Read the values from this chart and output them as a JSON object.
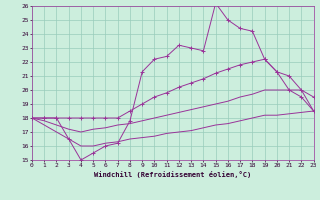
{
  "xlabel": "Windchill (Refroidissement éolien,°C)",
  "bg_color": "#cceedd",
  "grid_color": "#99ccbb",
  "line_color": "#993399",
  "xmin": 0,
  "xmax": 23,
  "ymin": 15,
  "ymax": 26,
  "yticks": [
    15,
    16,
    17,
    18,
    19,
    20,
    21,
    22,
    23,
    24,
    25,
    26
  ],
  "xticks": [
    0,
    1,
    2,
    3,
    4,
    5,
    6,
    7,
    8,
    9,
    10,
    11,
    12,
    13,
    14,
    15,
    16,
    17,
    18,
    19,
    20,
    21,
    22,
    23
  ],
  "line1_x": [
    0,
    1,
    2,
    3,
    4,
    5,
    6,
    7,
    8,
    9,
    10,
    11,
    12,
    13,
    14,
    15,
    16,
    17,
    18,
    19,
    20,
    21,
    22,
    23
  ],
  "line1_y": [
    18.0,
    18.0,
    18.0,
    16.5,
    15.0,
    15.5,
    16.0,
    16.2,
    17.8,
    21.3,
    22.2,
    22.4,
    23.2,
    23.0,
    22.8,
    26.2,
    25.0,
    24.4,
    24.2,
    22.2,
    21.3,
    20.0,
    19.5,
    18.5
  ],
  "line2_x": [
    0,
    1,
    2,
    3,
    4,
    5,
    6,
    7,
    8,
    9,
    10,
    11,
    12,
    13,
    14,
    15,
    16,
    17,
    18,
    19,
    20,
    21,
    22,
    23
  ],
  "line2_y": [
    18.0,
    18.0,
    18.0,
    18.0,
    18.0,
    18.0,
    18.0,
    18.0,
    18.5,
    19.0,
    19.5,
    19.8,
    20.2,
    20.5,
    20.8,
    21.2,
    21.5,
    21.8,
    22.0,
    22.2,
    21.3,
    21.0,
    20.0,
    19.5
  ],
  "line3_x": [
    0,
    1,
    2,
    3,
    4,
    5,
    6,
    7,
    8,
    9,
    10,
    11,
    12,
    13,
    14,
    15,
    16,
    17,
    18,
    19,
    20,
    21,
    22,
    23
  ],
  "line3_y": [
    18.0,
    17.8,
    17.5,
    17.2,
    17.0,
    17.2,
    17.3,
    17.5,
    17.6,
    17.8,
    18.0,
    18.2,
    18.4,
    18.6,
    18.8,
    19.0,
    19.2,
    19.5,
    19.7,
    20.0,
    20.0,
    20.0,
    20.0,
    18.5
  ],
  "line4_x": [
    0,
    1,
    2,
    3,
    4,
    5,
    6,
    7,
    8,
    9,
    10,
    11,
    12,
    13,
    14,
    15,
    16,
    17,
    18,
    19,
    20,
    21,
    22,
    23
  ],
  "line4_y": [
    18.0,
    17.5,
    17.0,
    16.5,
    16.0,
    16.0,
    16.2,
    16.3,
    16.5,
    16.6,
    16.7,
    16.9,
    17.0,
    17.1,
    17.3,
    17.5,
    17.6,
    17.8,
    18.0,
    18.2,
    18.2,
    18.3,
    18.4,
    18.5
  ]
}
